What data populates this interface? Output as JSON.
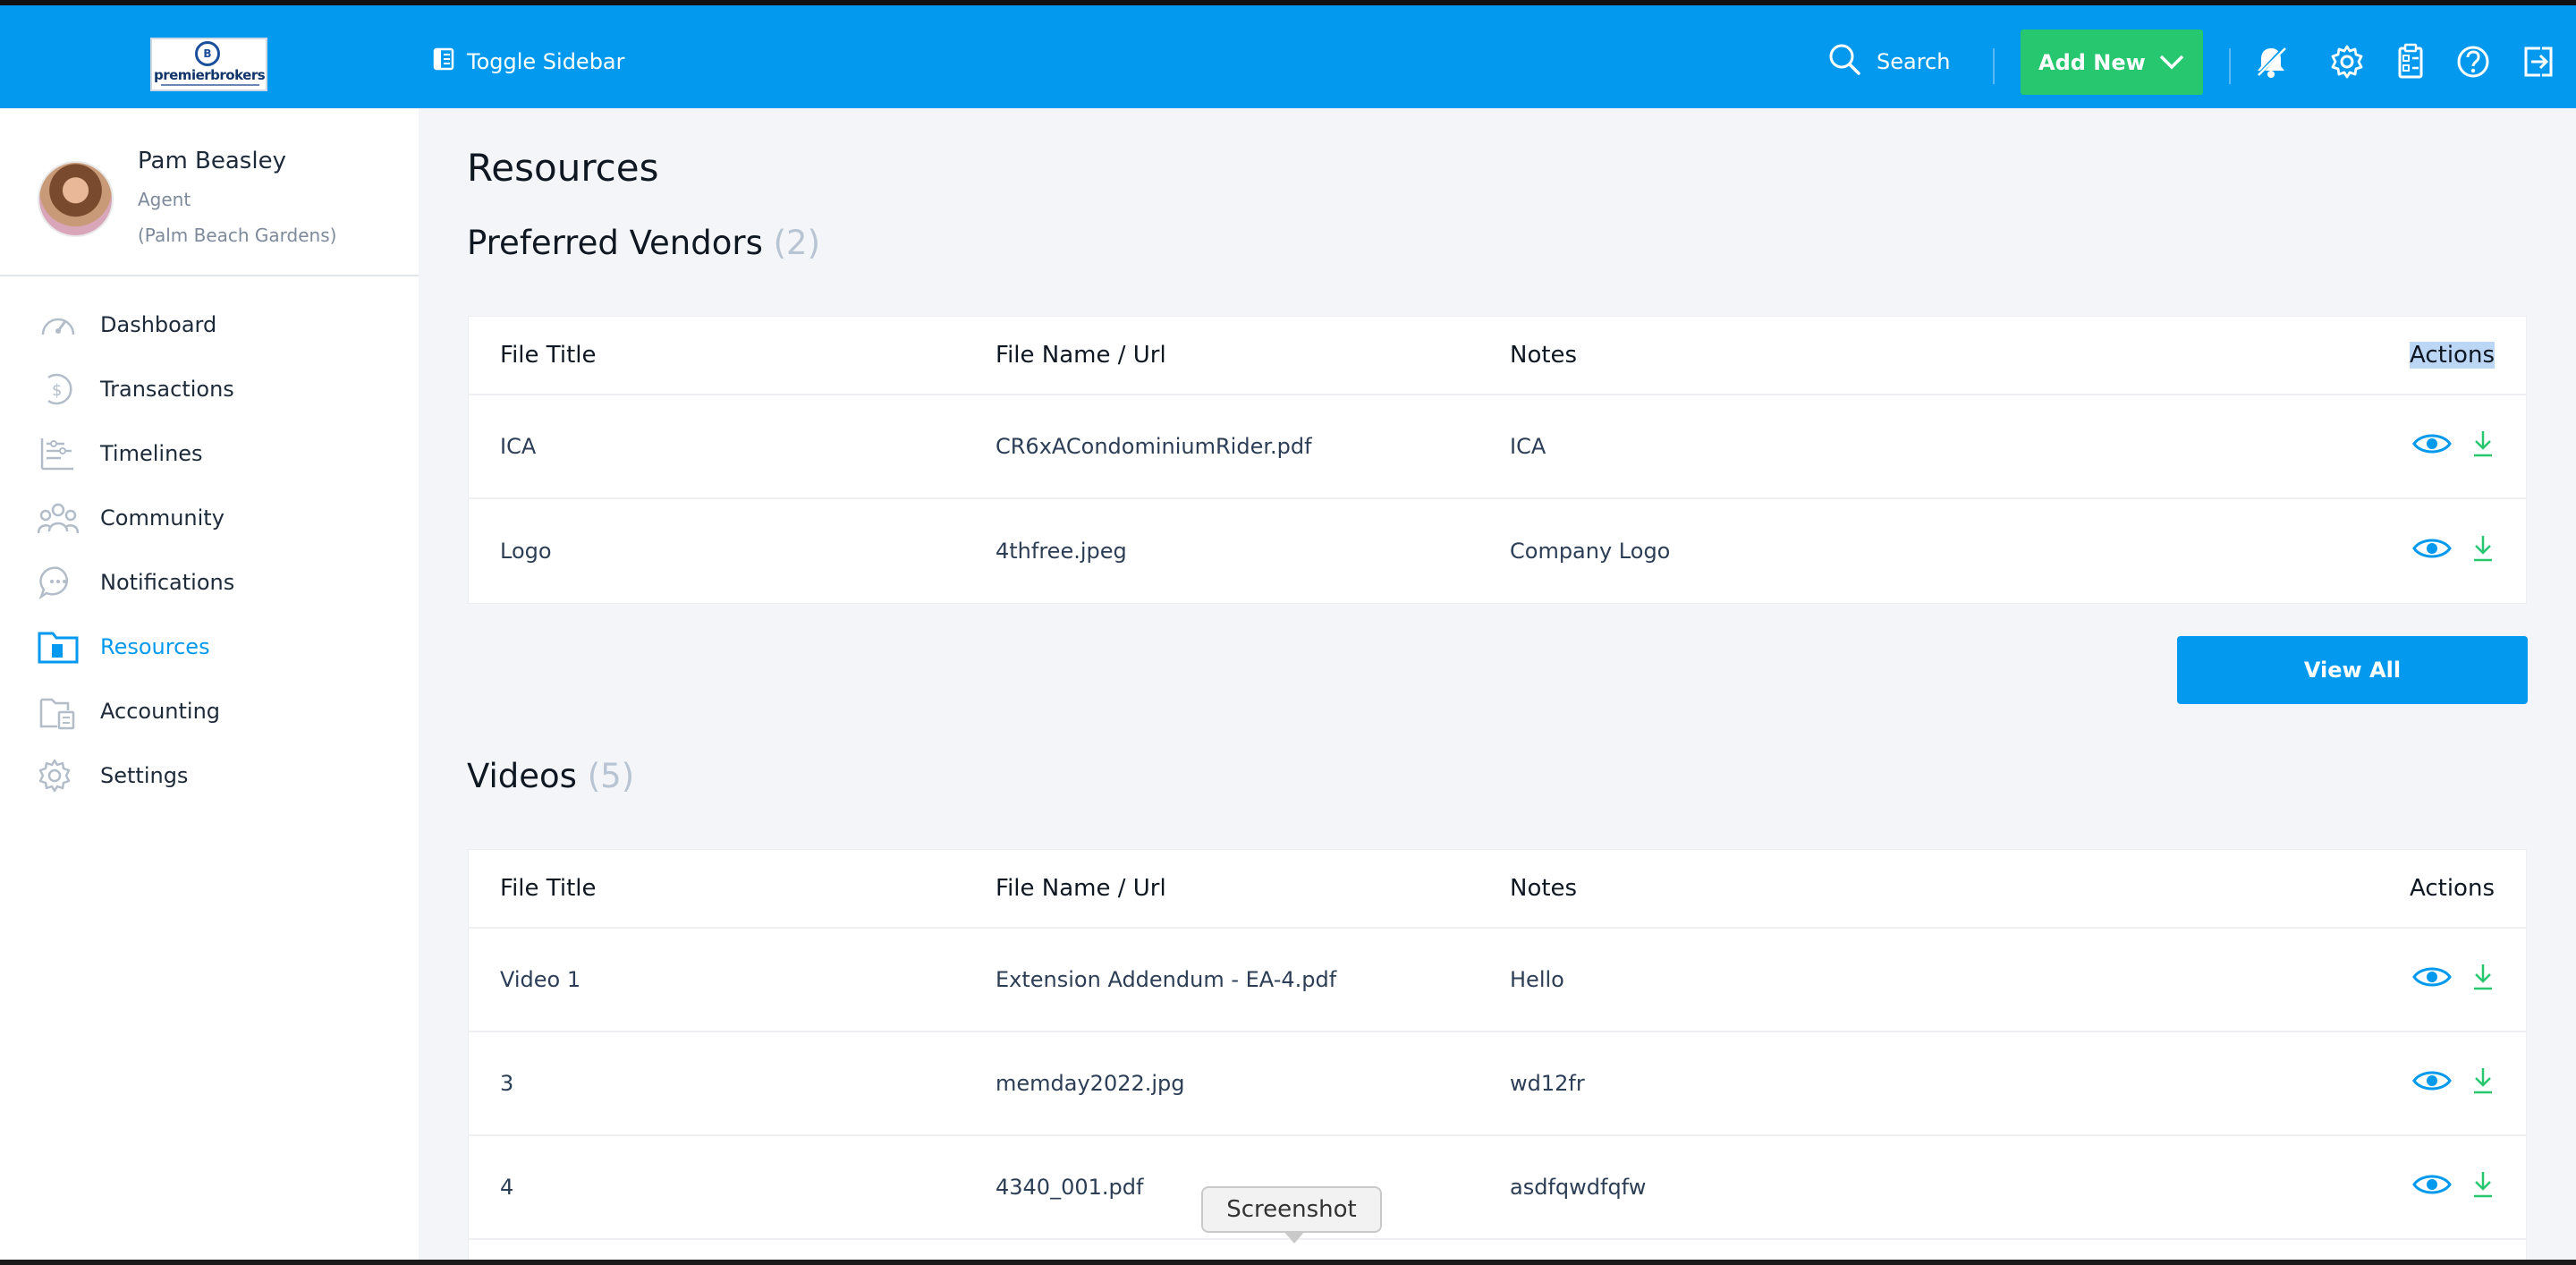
{
  "header": {
    "logo_text": "premierbrokers",
    "toggle_sidebar_label": "Toggle Sidebar",
    "search_label": "Search",
    "add_new_label": "Add New",
    "icons": [
      "notification-bell-off-icon",
      "gear-icon",
      "calculator-icon",
      "help-icon",
      "logout-icon"
    ]
  },
  "user": {
    "name": "Pam Beasley",
    "role": "Agent",
    "office": "(Palm Beach Gardens)"
  },
  "sidebar": {
    "items": [
      {
        "label": "Dashboard",
        "icon": "speedometer-icon",
        "active": false
      },
      {
        "label": "Transactions",
        "icon": "dollar-icon",
        "active": false
      },
      {
        "label": "Timelines",
        "icon": "timeline-icon",
        "active": false
      },
      {
        "label": "Community",
        "icon": "community-icon",
        "active": false
      },
      {
        "label": "Notifications",
        "icon": "chat-icon",
        "active": false
      },
      {
        "label": "Resources",
        "icon": "folder-icon",
        "active": true
      },
      {
        "label": "Accounting",
        "icon": "accounting-icon",
        "active": false
      },
      {
        "label": "Settings",
        "icon": "gear-icon",
        "active": false
      }
    ]
  },
  "main": {
    "page_title": "Resources",
    "columns": {
      "file_title": "File Title",
      "file_name": "File Name / Url",
      "notes": "Notes",
      "actions": "Actions"
    },
    "preferred_vendors": {
      "title": "Preferred Vendors",
      "count": "(2)",
      "rows": [
        {
          "title": "ICA",
          "file": "CR6xACondominiumRider.pdf",
          "notes": "ICA"
        },
        {
          "title": "Logo",
          "file": "4thfree.jpeg",
          "notes": "Company Logo"
        }
      ],
      "view_all_label": "View All"
    },
    "videos": {
      "title": "Videos",
      "count": "(5)",
      "rows": [
        {
          "title": "Video 1",
          "file": "Extension Addendum - EA-4.pdf",
          "notes": "Hello"
        },
        {
          "title": "3",
          "file": "memday2022.jpg",
          "notes": "wd12fr"
        },
        {
          "title": "4",
          "file": "4340_001.pdf",
          "notes": "asdfqwdfqfw"
        }
      ]
    }
  },
  "tooltip": {
    "label": "Screenshot"
  },
  "colors": {
    "primary": "#0399ee",
    "success": "#27c76f",
    "background": "#f4f5f8"
  }
}
